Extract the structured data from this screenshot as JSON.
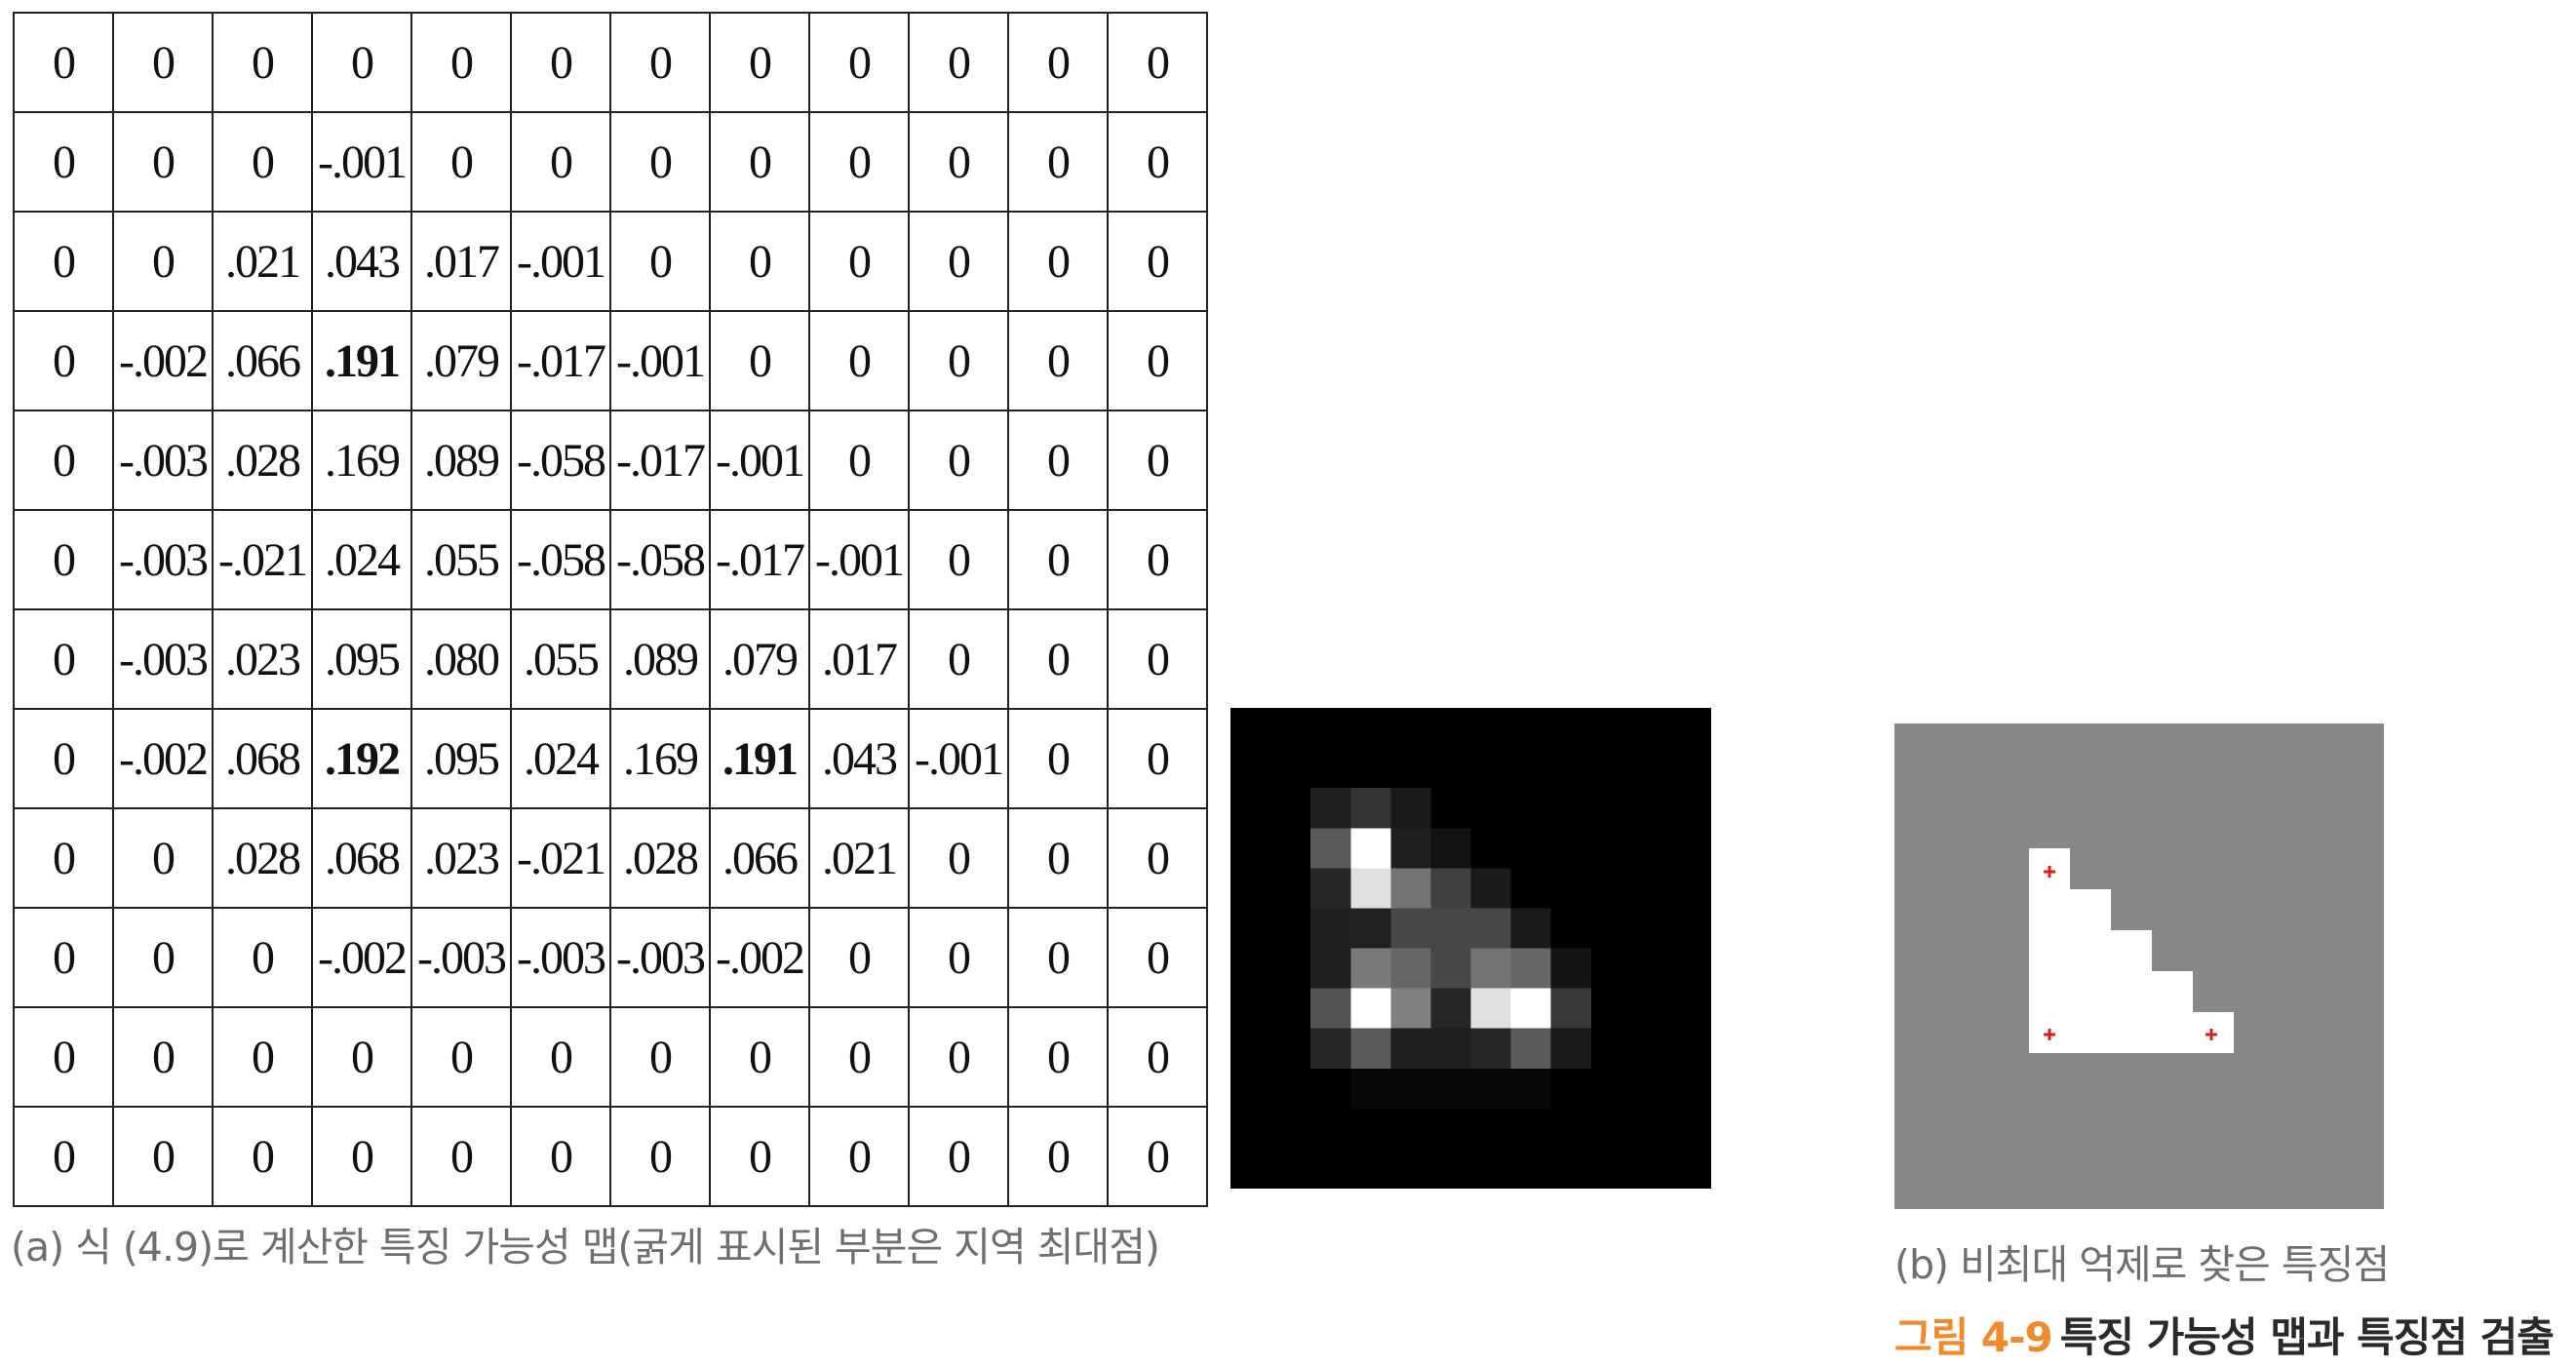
{
  "feature_map": {
    "rows": [
      [
        "0",
        "0",
        "0",
        "0",
        "0",
        "0",
        "0",
        "0",
        "0",
        "0",
        "0",
        "0"
      ],
      [
        "0",
        "0",
        "0",
        "-.001",
        "0",
        "0",
        "0",
        "0",
        "0",
        "0",
        "0",
        "0"
      ],
      [
        "0",
        "0",
        ".021",
        ".043",
        ".017",
        "-.001",
        "0",
        "0",
        "0",
        "0",
        "0",
        "0"
      ],
      [
        "0",
        "-.002",
        ".066",
        ".191",
        ".079",
        "-.017",
        "-.001",
        "0",
        "0",
        "0",
        "0",
        "0"
      ],
      [
        "0",
        "-.003",
        ".028",
        ".169",
        ".089",
        "-.058",
        "-.017",
        "-.001",
        "0",
        "0",
        "0",
        "0"
      ],
      [
        "0",
        "-.003",
        "-.021",
        ".024",
        ".055",
        "-.058",
        "-.058",
        "-.017",
        "-.001",
        "0",
        "0",
        "0"
      ],
      [
        "0",
        "-.003",
        ".023",
        ".095",
        ".080",
        ".055",
        ".089",
        ".079",
        ".017",
        "0",
        "0",
        "0"
      ],
      [
        "0",
        "-.002",
        ".068",
        ".192",
        ".095",
        ".024",
        ".169",
        ".191",
        ".043",
        "-.001",
        "0",
        "0"
      ],
      [
        "0",
        "0",
        ".028",
        ".068",
        ".023",
        "-.021",
        ".028",
        ".066",
        ".021",
        "0",
        "0",
        "0"
      ],
      [
        "0",
        "0",
        "0",
        "-.002",
        "-.003",
        "-.003",
        "-.003",
        "-.002",
        "0",
        "0",
        "0",
        "0"
      ],
      [
        "0",
        "0",
        "0",
        "0",
        "0",
        "0",
        "0",
        "0",
        "0",
        "0",
        "0",
        "0"
      ],
      [
        "0",
        "0",
        "0",
        "0",
        "0",
        "0",
        "0",
        "0",
        "0",
        "0",
        "0",
        "0"
      ]
    ],
    "bold_cells": [
      [
        3,
        3
      ],
      [
        7,
        3
      ],
      [
        7,
        7
      ]
    ]
  },
  "heatmap": {
    "grid": [
      [
        0.0,
        0.0,
        0.0,
        0.0,
        0.0,
        0.0,
        0.0,
        0.0,
        0.0,
        0.0,
        0.0,
        0.0
      ],
      [
        0.0,
        0.0,
        0.0,
        0.0,
        0.0,
        0.0,
        0.0,
        0.0,
        0.0,
        0.0,
        0.0,
        0.0
      ],
      [
        0.0,
        0.0,
        0.12,
        0.2,
        0.1,
        0.0,
        0.0,
        0.0,
        0.0,
        0.0,
        0.0,
        0.0
      ],
      [
        0.0,
        0.0,
        0.35,
        1.0,
        0.12,
        0.07,
        0.0,
        0.0,
        0.0,
        0.0,
        0.0,
        0.0
      ],
      [
        0.0,
        0.0,
        0.15,
        0.88,
        0.45,
        0.25,
        0.1,
        0.0,
        0.0,
        0.0,
        0.0,
        0.0
      ],
      [
        0.0,
        0.0,
        0.12,
        0.13,
        0.28,
        0.28,
        0.28,
        0.1,
        0.0,
        0.0,
        0.0,
        0.0
      ],
      [
        0.0,
        0.0,
        0.12,
        0.48,
        0.4,
        0.28,
        0.45,
        0.4,
        0.08,
        0.0,
        0.0,
        0.0
      ],
      [
        0.0,
        0.0,
        0.32,
        1.0,
        0.5,
        0.15,
        0.88,
        1.0,
        0.22,
        0.0,
        0.0,
        0.0
      ],
      [
        0.0,
        0.0,
        0.15,
        0.35,
        0.12,
        0.12,
        0.15,
        0.35,
        0.1,
        0.0,
        0.0,
        0.0
      ],
      [
        0.0,
        0.0,
        0.0,
        0.03,
        0.03,
        0.03,
        0.03,
        0.03,
        0.0,
        0.0,
        0.0,
        0.0
      ],
      [
        0.0,
        0.0,
        0.0,
        0.0,
        0.0,
        0.0,
        0.0,
        0.0,
        0.0,
        0.0,
        0.0,
        0.0
      ],
      [
        0.0,
        0.0,
        0.0,
        0.0,
        0.0,
        0.0,
        0.0,
        0.0,
        0.0,
        0.0,
        0.0,
        0.0
      ]
    ]
  },
  "nms_result": {
    "background_color": "#888888",
    "shape_color": "#ffffff",
    "marker_color": "#e21b1b"
  },
  "captions": {
    "a": "(a) 식 (4.9)로 계산한 특징 가능성 맵(굵게 표시된 부분은 지역 최대점)",
    "b": "(b) 비최대 억제로 찾은 특징점"
  },
  "figure": {
    "number": "그림 4-9",
    "title": "특징 가능성 맵과 특징점 검출",
    "number_color": "#f08a2c"
  }
}
